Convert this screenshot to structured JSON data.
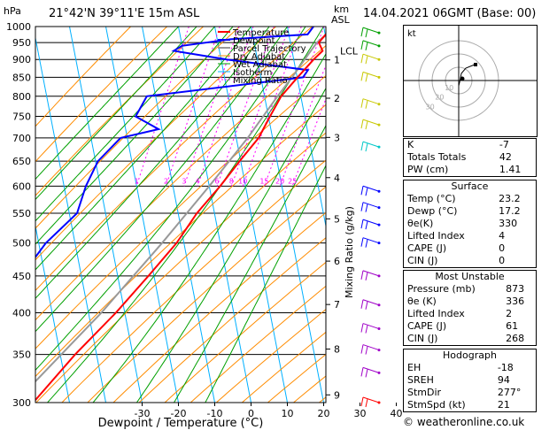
{
  "header": {
    "location": "21°42'N 39°11'E 15m ASL",
    "datetime": "14.04.2021 06GMT (Base: 00)",
    "hpa_label": "hPa",
    "km_label": "km",
    "asl_label": "ASL"
  },
  "chart_data": {
    "type": "line",
    "xlabel": "Dewpoint / Temperature (°C)",
    "ylabel_right": "Mixing Ratio (g/kg)",
    "x_ticks": [
      "-30",
      "-20",
      "-10",
      "0",
      "10",
      "20",
      "30",
      "40"
    ],
    "pressure_ticks": [
      "300",
      "350",
      "400",
      "450",
      "500",
      "550",
      "600",
      "650",
      "700",
      "750",
      "800",
      "850",
      "900",
      "950",
      "1000"
    ],
    "km_ticks": [
      "9",
      "8",
      "7",
      "6",
      "5",
      "4",
      "3",
      "2",
      "1"
    ],
    "lcl_label": "LCL",
    "mixing_ratio_labels": [
      "1",
      "2",
      "3",
      "4",
      "6",
      "8",
      "10",
      "15",
      "20",
      "25"
    ],
    "legend": [
      "Temperature",
      "Dewpoint",
      "Parcel Trajectory",
      "Dry Adiabat",
      "Wet Adiabat",
      "Isotherm",
      "Mixing Ratio"
    ],
    "colors": {
      "temperature": "#ff0000",
      "dewpoint": "#0000ff",
      "parcel": "#999999",
      "dry_adiabat": "#ff8c00",
      "wet_adiabat": "#00a000",
      "isotherm": "#00b0ff",
      "mixing_ratio": "#ff00ff"
    },
    "temperature": [
      [
        1000,
        23.2
      ],
      [
        975,
        21
      ],
      [
        950,
        19.5
      ],
      [
        925,
        21
      ],
      [
        900,
        19
      ],
      [
        850,
        15.5
      ],
      [
        800,
        12
      ],
      [
        750,
        10
      ],
      [
        700,
        8
      ],
      [
        650,
        4
      ],
      [
        600,
        0
      ],
      [
        550,
        -5
      ],
      [
        500,
        -9
      ],
      [
        450,
        -15
      ],
      [
        400,
        -22
      ],
      [
        350,
        -31
      ],
      [
        300,
        -40
      ]
    ],
    "dewpoint": [
      [
        1000,
        17.2
      ],
      [
        975,
        16
      ],
      [
        960,
        -5
      ],
      [
        940,
        -18
      ],
      [
        925,
        -20
      ],
      [
        900,
        -5
      ],
      [
        870,
        18
      ],
      [
        850,
        17
      ],
      [
        800,
        -25
      ],
      [
        750,
        -27
      ],
      [
        720,
        -20
      ],
      [
        700,
        -30
      ],
      [
        650,
        -35
      ],
      [
        600,
        -37
      ],
      [
        550,
        -38
      ],
      [
        500,
        -45
      ],
      [
        450,
        -50
      ],
      [
        420,
        -52
      ],
      [
        400,
        -45
      ],
      [
        380,
        -55
      ],
      [
        350,
        -52
      ],
      [
        330,
        -55
      ],
      [
        315,
        -50
      ],
      [
        300,
        -48
      ]
    ],
    "parcel": [
      [
        1000,
        23.2
      ],
      [
        950,
        19
      ],
      [
        920,
        17.5
      ],
      [
        850,
        14
      ],
      [
        800,
        11
      ],
      [
        700,
        5
      ],
      [
        600,
        -3
      ],
      [
        500,
        -13
      ],
      [
        400,
        -26
      ],
      [
        300,
        -45
      ]
    ]
  },
  "hodograph": {
    "label": "kt",
    "ring_labels": [
      "10",
      "20",
      "30"
    ]
  },
  "indices": {
    "k_label": "K",
    "k": "-7",
    "tt_label": "Totals Totals",
    "tt": "42",
    "pw_label": "PW (cm)",
    "pw": "1.41"
  },
  "surface": {
    "title": "Surface",
    "temp_label": "Temp (°C)",
    "temp": "23.2",
    "dewp_label": "Dewp (°C)",
    "dewp": "17.2",
    "theta_label": "θe(K)",
    "theta": "330",
    "li_label": "Lifted Index",
    "li": "4",
    "cape_label": "CAPE (J)",
    "cape": "0",
    "cin_label": "CIN (J)",
    "cin": "0"
  },
  "most_unstable": {
    "title": "Most Unstable",
    "pres_label": "Pressure (mb)",
    "pres": "873",
    "theta_label": "θe (K)",
    "theta": "336",
    "li_label": "Lifted Index",
    "li": "2",
    "cape_label": "CAPE (J)",
    "cape": "61",
    "cin_label": "CIN (J)",
    "cin": "268"
  },
  "hodo_table": {
    "title": "Hodograph",
    "eh_label": "EH",
    "eh": "-18",
    "sreh_label": "SREH",
    "sreh": "94",
    "stmdir_label": "StmDir",
    "stmdir": "277°",
    "stmspd_label": "StmSpd (kt)",
    "stmspd": "21"
  },
  "credit": "© weatheronline.co.uk"
}
